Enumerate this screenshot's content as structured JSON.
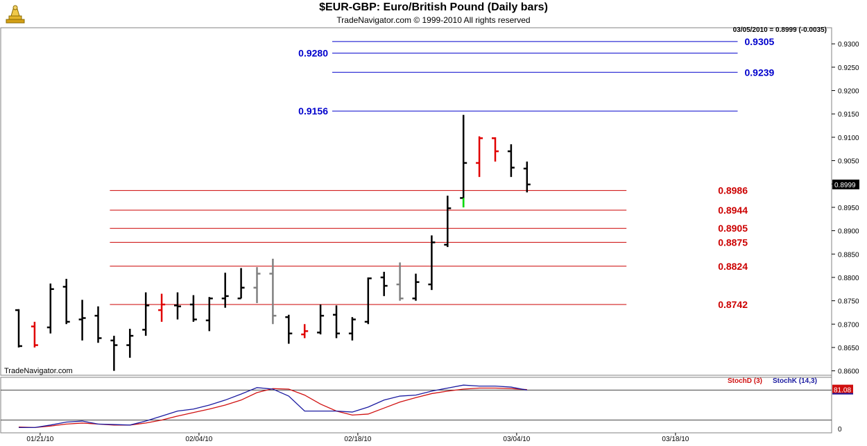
{
  "header": {
    "title": "$EUR-GBP:  Euro/British Pound  (Daily bars)",
    "subtitle": "TradeNavigator.com © 1999-2010 All rights reserved",
    "last_quote": "03/05/2010 = 0.8999 (-0.0035)",
    "watermark": "TradeNavigator.com"
  },
  "colors": {
    "bar_up": "#000000",
    "bar_down": "#e00000",
    "bar_neutral": "#808080",
    "bar_signal": "#00dd00",
    "resistance": "#0000cc",
    "support": "#cc0000",
    "stoch_d": "#d01010",
    "stoch_k": "#1a1aa0"
  },
  "chart_data": [
    {
      "type": "ohlc",
      "title": "$EUR-GBP:  Euro/British Pound  (Daily bars)",
      "ylim": [
        0.8595,
        0.933
      ],
      "y_ticks": [
        "0.9300",
        "0.9250",
        "0.9200",
        "0.9150",
        "0.9100",
        "0.9050",
        "0.9000",
        "0.8950",
        "0.8900",
        "0.8850",
        "0.8800",
        "0.8750",
        "0.8700",
        "0.8650",
        "0.8600"
      ],
      "x_ticks": [
        "01/21/10",
        "02/04/10",
        "02/18/10",
        "03/04/10",
        "03/18/10"
      ],
      "x_tick_index": [
        1,
        11,
        21,
        31,
        41
      ],
      "last_price_label": "0.8999",
      "levels": [
        {
          "value": 0.9305,
          "label": "0.9305",
          "kind": "resistance",
          "from": 20,
          "to": 45,
          "label_side": "right"
        },
        {
          "value": 0.928,
          "label": "0.9280",
          "kind": "resistance",
          "from": 20,
          "to": 45,
          "label_side": "left"
        },
        {
          "value": 0.9239,
          "label": "0.9239",
          "kind": "resistance",
          "from": 20,
          "to": 45,
          "label_side": "right"
        },
        {
          "value": 0.9156,
          "label": "0.9156",
          "kind": "resistance",
          "from": 20,
          "to": 45,
          "label_side": "left"
        },
        {
          "value": 0.8986,
          "label": "0.8986",
          "kind": "support",
          "from": 6,
          "to": 38,
          "label_side": "right"
        },
        {
          "value": 0.8944,
          "label": "0.8944",
          "kind": "support",
          "from": 6,
          "to": 38,
          "label_side": "right"
        },
        {
          "value": 0.8905,
          "label": "0.8905",
          "kind": "support",
          "from": 6,
          "to": 38,
          "label_side": "right"
        },
        {
          "value": 0.8875,
          "label": "0.8875",
          "kind": "support",
          "from": 6,
          "to": 38,
          "label_side": "right"
        },
        {
          "value": 0.8824,
          "label": "0.8824",
          "kind": "support",
          "from": 6,
          "to": 38,
          "label_side": "right"
        },
        {
          "value": 0.8742,
          "label": "0.8742",
          "kind": "support",
          "from": 6,
          "to": 38,
          "label_side": "right"
        }
      ],
      "bars": [
        {
          "o": 0.873,
          "h": 0.8732,
          "l": 0.865,
          "c": 0.8653,
          "color": "up"
        },
        {
          "o": 0.8695,
          "h": 0.8705,
          "l": 0.865,
          "c": 0.8655,
          "color": "down"
        },
        {
          "o": 0.8693,
          "h": 0.8787,
          "l": 0.868,
          "c": 0.8775,
          "color": "up"
        },
        {
          "o": 0.878,
          "h": 0.8797,
          "l": 0.87,
          "c": 0.8705,
          "color": "up"
        },
        {
          "o": 0.871,
          "h": 0.8752,
          "l": 0.8665,
          "c": 0.8713,
          "color": "up"
        },
        {
          "o": 0.8718,
          "h": 0.8738,
          "l": 0.866,
          "c": 0.867,
          "color": "up"
        },
        {
          "o": 0.8665,
          "h": 0.8675,
          "l": 0.86,
          "c": 0.8655,
          "color": "up"
        },
        {
          "o": 0.8655,
          "h": 0.869,
          "l": 0.8628,
          "c": 0.8675,
          "color": "up"
        },
        {
          "o": 0.8688,
          "h": 0.8768,
          "l": 0.8675,
          "c": 0.874,
          "color": "up"
        },
        {
          "o": 0.873,
          "h": 0.8765,
          "l": 0.8705,
          "c": 0.8742,
          "color": "down"
        },
        {
          "o": 0.874,
          "h": 0.8768,
          "l": 0.871,
          "c": 0.8738,
          "color": "up"
        },
        {
          "o": 0.8742,
          "h": 0.8762,
          "l": 0.8705,
          "c": 0.871,
          "color": "up"
        },
        {
          "o": 0.8708,
          "h": 0.8758,
          "l": 0.8685,
          "c": 0.8755,
          "color": "up"
        },
        {
          "o": 0.8755,
          "h": 0.881,
          "l": 0.8735,
          "c": 0.876,
          "color": "up"
        },
        {
          "o": 0.8755,
          "h": 0.882,
          "l": 0.8755,
          "c": 0.8778,
          "color": "up"
        },
        {
          "o": 0.8778,
          "h": 0.8822,
          "l": 0.8745,
          "c": 0.8808,
          "color": "neutral"
        },
        {
          "o": 0.8808,
          "h": 0.884,
          "l": 0.87,
          "c": 0.8718,
          "color": "neutral"
        },
        {
          "o": 0.8715,
          "h": 0.872,
          "l": 0.8658,
          "c": 0.868,
          "color": "up"
        },
        {
          "o": 0.8678,
          "h": 0.87,
          "l": 0.867,
          "c": 0.8685,
          "color": "down"
        },
        {
          "o": 0.8682,
          "h": 0.8742,
          "l": 0.8678,
          "c": 0.8718,
          "color": "up"
        },
        {
          "o": 0.872,
          "h": 0.874,
          "l": 0.867,
          "c": 0.868,
          "color": "up"
        },
        {
          "o": 0.868,
          "h": 0.8715,
          "l": 0.8665,
          "c": 0.871,
          "color": "up"
        },
        {
          "o": 0.8705,
          "h": 0.88,
          "l": 0.87,
          "c": 0.8798,
          "color": "up"
        },
        {
          "o": 0.88,
          "h": 0.8812,
          "l": 0.876,
          "c": 0.8782,
          "color": "up"
        },
        {
          "o": 0.8785,
          "h": 0.8832,
          "l": 0.875,
          "c": 0.8755,
          "color": "neutral"
        },
        {
          "o": 0.8755,
          "h": 0.8808,
          "l": 0.875,
          "c": 0.879,
          "color": "up"
        },
        {
          "o": 0.8785,
          "h": 0.889,
          "l": 0.8773,
          "c": 0.8875,
          "color": "up"
        },
        {
          "o": 0.887,
          "h": 0.8975,
          "l": 0.8865,
          "c": 0.8948,
          "color": "up"
        },
        {
          "o": 0.897,
          "h": 0.9148,
          "l": 0.895,
          "c": 0.9045,
          "color": "up",
          "low_tail": "signal"
        },
        {
          "o": 0.9045,
          "h": 0.9102,
          "l": 0.9015,
          "c": 0.9098,
          "color": "down"
        },
        {
          "o": 0.9098,
          "h": 0.91,
          "l": 0.9048,
          "c": 0.907,
          "color": "down"
        },
        {
          "o": 0.907,
          "h": 0.9085,
          "l": 0.9015,
          "c": 0.9035,
          "color": "up"
        },
        {
          "o": 0.9033,
          "h": 0.9048,
          "l": 0.8982,
          "c": 0.8999,
          "color": "up"
        }
      ]
    },
    {
      "type": "line",
      "title": "",
      "ylim": [
        0,
        100
      ],
      "y_ticks": [
        "0"
      ],
      "last_value_label": "81.08",
      "reference_lines": [
        80,
        20
      ],
      "series": [
        {
          "name": "StochD (3)",
          "values": [
            6,
            5,
            8,
            12,
            14,
            12,
            10,
            10,
            14,
            20,
            28,
            35,
            42,
            50,
            60,
            75,
            83,
            82,
            70,
            52,
            38,
            30,
            32,
            44,
            56,
            65,
            73,
            78,
            82,
            84,
            84,
            83,
            81
          ]
        },
        {
          "name": "StochK (14,3)",
          "values": [
            5,
            5,
            10,
            16,
            18,
            12,
            11,
            10,
            18,
            28,
            38,
            42,
            50,
            60,
            72,
            85,
            82,
            68,
            38,
            38,
            38,
            36,
            46,
            60,
            68,
            70,
            78,
            84,
            90,
            88,
            88,
            86,
            80
          ]
        }
      ]
    }
  ]
}
